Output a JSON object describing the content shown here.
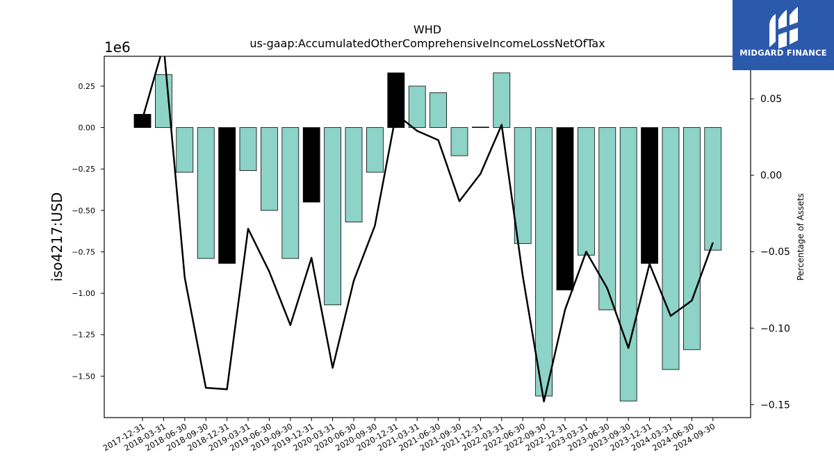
{
  "brand": {
    "name": "MIDGARD FINANCE",
    "bg_color": "#2b59ac"
  },
  "chart_data": {
    "type": "bar+line",
    "title": "WHD",
    "subtitle": "us-gaap:AccumulatedOtherComprehensiveIncomeLossNetOfTax",
    "ylabel": "iso4217:USD",
    "y_offset_label": "1e6",
    "y2label": "Percentage of Assets",
    "ylim": [
      -1.75,
      0.43
    ],
    "y2lim": [
      -0.1585,
      0.0778
    ],
    "yticks": [
      0.25,
      0.0,
      -0.25,
      -0.5,
      -0.75,
      -1.0,
      -1.25,
      -1.5
    ],
    "ytick_labels": [
      "0.25",
      "0.00",
      "−0.25",
      "−0.50",
      "−0.75",
      "−1.00",
      "−1.25",
      "−1.50"
    ],
    "y2ticks": [
      0.05,
      0.0,
      -0.05,
      -0.1,
      -0.15
    ],
    "y2tick_labels": [
      "0.05",
      "0.00",
      "−0.05",
      "−0.10",
      "−0.15"
    ],
    "categories": [
      "2017-12-31",
      "2018-03-31",
      "2018-06-30",
      "2018-09-30",
      "2018-12-31",
      "2019-03-31",
      "2019-06-30",
      "2019-09-30",
      "2019-12-31",
      "2020-03-31",
      "2020-06-30",
      "2020-09-30",
      "2020-12-31",
      "2021-03-31",
      "2021-06-30",
      "2021-09-30",
      "2021-12-31",
      "2022-03-31",
      "2022-06-30",
      "2022-09-30",
      "2022-12-31",
      "2023-03-31",
      "2023-06-30",
      "2023-09-30",
      "2023-12-31",
      "2024-03-31",
      "2024-06-30",
      "2024-09-30"
    ],
    "values": [
      0.08,
      0.32,
      -0.27,
      -0.79,
      -0.82,
      -0.26,
      -0.5,
      -0.79,
      -0.45,
      -1.07,
      -0.57,
      -0.27,
      0.33,
      0.25,
      0.21,
      -0.17,
      0.003,
      0.33,
      -0.7,
      -1.62,
      -0.98,
      -0.77,
      -1.1,
      -1.65,
      -0.82,
      -1.46,
      -1.34,
      -0.74
    ],
    "bar_colors": [
      "#000000",
      "#8dd3c7",
      "#8dd3c7",
      "#8dd3c7",
      "#000000",
      "#8dd3c7",
      "#8dd3c7",
      "#8dd3c7",
      "#000000",
      "#8dd3c7",
      "#8dd3c7",
      "#8dd3c7",
      "#000000",
      "#8dd3c7",
      "#8dd3c7",
      "#8dd3c7",
      "#000000",
      "#8dd3c7",
      "#8dd3c7",
      "#8dd3c7",
      "#000000",
      "#8dd3c7",
      "#8dd3c7",
      "#8dd3c7",
      "#000000",
      "#8dd3c7",
      "#8dd3c7",
      "#8dd3c7"
    ],
    "pct_of_assets": [
      0.037,
      0.085,
      -0.067,
      -0.139,
      -0.14,
      -0.035,
      -0.063,
      -0.098,
      -0.054,
      -0.126,
      -0.069,
      -0.033,
      0.04,
      0.029,
      0.023,
      -0.017,
      0.001,
      0.033,
      -0.066,
      -0.148,
      -0.088,
      -0.05,
      -0.074,
      -0.113,
      -0.058,
      -0.092,
      -0.082,
      -0.044
    ],
    "grid": false,
    "legend": "none"
  }
}
